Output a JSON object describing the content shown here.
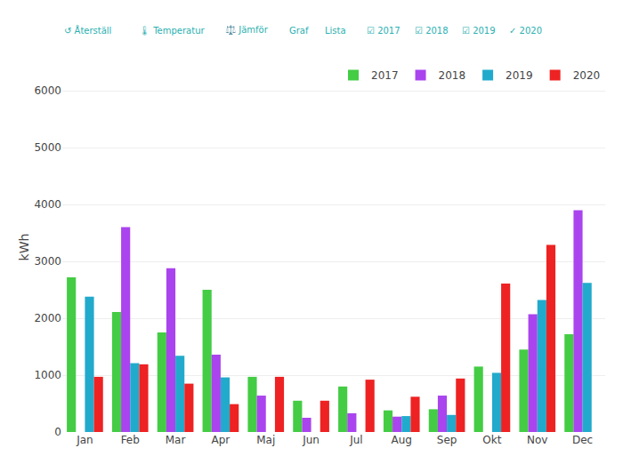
{
  "chart_data": {
    "type": "bar",
    "ylabel": "kWh",
    "categories": [
      "Jan",
      "Feb",
      "Mar",
      "Apr",
      "Maj",
      "Jun",
      "Jul",
      "Aug",
      "Sep",
      "Okt",
      "Nov",
      "Dec"
    ],
    "series": [
      {
        "name": "2017",
        "color": "#44cc44",
        "values": [
          2720,
          2110,
          1750,
          2500,
          970,
          550,
          800,
          380,
          400,
          1150,
          1450,
          1720
        ]
      },
      {
        "name": "2018",
        "color": "#aa44ee",
        "values": [
          0,
          3600,
          2880,
          1360,
          640,
          250,
          330,
          270,
          640,
          0,
          2070,
          3900
        ]
      },
      {
        "name": "2019",
        "color": "#22aacc",
        "values": [
          2380,
          1210,
          1340,
          960,
          0,
          0,
          0,
          280,
          300,
          1040,
          2320,
          2620
        ]
      },
      {
        "name": "2020",
        "color": "#ee2222",
        "values": [
          970,
          1190,
          850,
          490,
          970,
          550,
          920,
          620,
          940,
          2610,
          3290,
          0
        ]
      }
    ],
    "ylim": [
      0,
      6500
    ],
    "yticks": [
      0,
      1000,
      2000,
      3000,
      4000,
      5000,
      6000
    ],
    "grid": true,
    "legend": "upper right",
    "annotations": [
      "↺ Återställ",
      "🌡 Temperatur",
      "⚖️ Jämför",
      "Graf",
      "Lista",
      "☑ 2017",
      "☑ 2018",
      "☑ 2019",
      "✓ 2020"
    ]
  }
}
